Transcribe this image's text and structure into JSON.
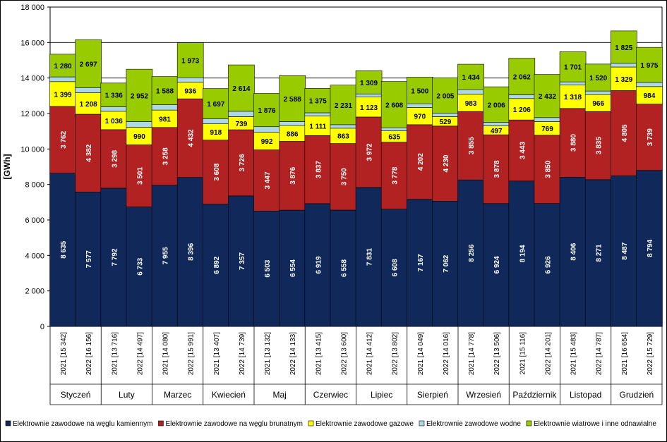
{
  "chart_data": {
    "type": "bar",
    "stacked": true,
    "ylabel": "[GWh]",
    "ylim": [
      0,
      18000
    ],
    "yticks": [
      "0",
      "2 000",
      "4 000",
      "6 000",
      "8 000",
      "10 000",
      "12 000",
      "14 000",
      "16 000",
      "18 000"
    ],
    "grid": true,
    "legend_position": "bottom",
    "months": [
      "Styczeń",
      "Luty",
      "Marzec",
      "Kwiecień",
      "Maj",
      "Czerwiec",
      "Lipiec",
      "Sierpień",
      "Wrzesień",
      "Październik",
      "Listopad",
      "Grudzień"
    ],
    "categories": [
      "2021 [15 342]",
      "2022 [16 156]",
      "2021 [13 716]",
      "2022 [14 497]",
      "2021 [14 080]",
      "2022 [15 991]",
      "2021 [13 407]",
      "2022 [14 739]",
      "2021 [13 132]",
      "2022 [14 133]",
      "2021 [13 415]",
      "2022 [13 600]",
      "2021 [14 412]",
      "2022 [13 802]",
      "2021 [14 049]",
      "2022 [14 016]",
      "2021 [14 778]",
      "2022 [13 506]",
      "2021 [15 116]",
      "2022 [14 201]",
      "2021 [15 483]",
      "2022 [14 787]",
      "2021 [16 654]",
      "2022 [15 729]"
    ],
    "series": [
      {
        "name": "Elektrownie zawodowe na węglu kamiennym",
        "color": "#10285A",
        "label_color": "#ffffff",
        "values": [
          8635,
          7577,
          7792,
          6733,
          7955,
          8396,
          6892,
          7357,
          6503,
          6554,
          6919,
          6558,
          7831,
          6608,
          7167,
          7062,
          8256,
          6924,
          8194,
          6926,
          8406,
          8271,
          8487,
          8794
        ],
        "labels": [
          "8 635",
          "7 577",
          "7 792",
          "6 733",
          "7 955",
          "8 396",
          "6 892",
          "7 357",
          "6 503",
          "6 554",
          "6 919",
          "6 558",
          "7 831",
          "6 608",
          "7 167",
          "7 062",
          "8 256",
          "6 924",
          "8 194",
          "6 926",
          "8 406",
          "8 271",
          "8 487",
          "8 794"
        ]
      },
      {
        "name": "Elektrownie zawodowe na węglu brunatnym",
        "color": "#B22222",
        "label_color": "#ffffff",
        "values": [
          3762,
          4382,
          3298,
          3501,
          3258,
          4432,
          3608,
          3726,
          3447,
          3876,
          3837,
          3750,
          3972,
          3778,
          4202,
          4230,
          3855,
          3878,
          3443,
          3850,
          3880,
          3835,
          4805,
          3739
        ],
        "labels": [
          "3 762",
          "4 382",
          "3 298",
          "3 501",
          "3 258",
          "4 432",
          "3 608",
          "3 726",
          "3 447",
          "3 876",
          "3 837",
          "3 750",
          "3 972",
          "3 778",
          "4 202",
          "4 230",
          "3 855",
          "3 878",
          "3 443",
          "3 850",
          "3 880",
          "3 835",
          "4 805",
          "3 739"
        ]
      },
      {
        "name": "Elektrownie zawodowe gazowe",
        "color": "#FFFF00",
        "label_color": "#000000",
        "values": [
          1399,
          1208,
          1036,
          990,
          981,
          936,
          918,
          739,
          992,
          886,
          1111,
          863,
          1123,
          635,
          970,
          529,
          983,
          497,
          1206,
          769,
          1318,
          966,
          1329,
          984
        ],
        "labels": [
          "1 399",
          "1 208",
          "1 036",
          "990",
          "981",
          "936",
          "918",
          "739",
          "992",
          "886",
          "1 111",
          "863",
          "1 123",
          "635",
          "970",
          "529",
          "983",
          "497",
          "1 206",
          "769",
          "1 318",
          "966",
          "1 329",
          "984"
        ]
      },
      {
        "name": "Elektrownie zawodowe wodne",
        "color": "#ADD8E6",
        "label_color": "#000000",
        "values": [
          266,
          292,
          254,
          321,
          298,
          254,
          292,
          303,
          314,
          229,
          173,
          198,
          177,
          173,
          210,
          190,
          250,
          201,
          211,
          224,
          178,
          195,
          208,
          237
        ],
        "labels": []
      },
      {
        "name": "Elektrownie wiatrowe i inne odnawialne",
        "color": "#99CC00",
        "label_color": "#000000",
        "values": [
          1280,
          2697,
          1336,
          2952,
          1588,
          1973,
          1697,
          2614,
          1876,
          2588,
          1375,
          2231,
          1309,
          2608,
          1500,
          2005,
          1434,
          2006,
          2062,
          2432,
          1701,
          1520,
          1825,
          1975
        ],
        "labels": [
          "1 280",
          "2 697",
          "1 336",
          "2 952",
          "1 588",
          "1 973",
          "1 697",
          "2 614",
          "1 876",
          "2 588",
          "1 375",
          "2 231",
          "1 309",
          "2 608",
          "1 500",
          "2 005",
          "1 434",
          "2 006",
          "2 062",
          "2 432",
          "1 701",
          "1 520",
          "1 825",
          "1 975"
        ]
      }
    ]
  }
}
